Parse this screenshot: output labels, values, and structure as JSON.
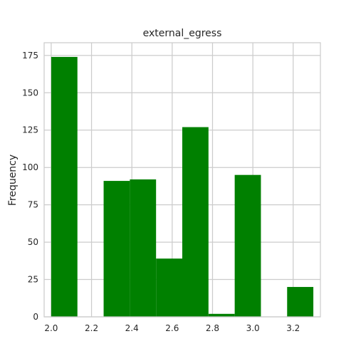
{
  "chart_data": {
    "type": "bar",
    "title": "external_egress",
    "xlabel": "",
    "ylabel": "Frequency",
    "xlim": [
      1.965,
      3.335
    ],
    "ylim": [
      0,
      183.5
    ],
    "xticks": [
      2.0,
      2.2,
      2.4,
      2.6,
      2.8,
      3.0,
      3.2
    ],
    "xtick_labels": [
      "2.0",
      "2.2",
      "2.4",
      "2.6",
      "2.8",
      "3.0",
      "3.2"
    ],
    "yticks": [
      0,
      25,
      50,
      75,
      100,
      125,
      150,
      175
    ],
    "ytick_labels": [
      "0",
      "25",
      "50",
      "75",
      "100",
      "125",
      "150",
      "175"
    ],
    "grid": true,
    "bar_color": "#008000",
    "bins": [
      {
        "x0": 2.0,
        "x1": 2.13,
        "value": 174
      },
      {
        "x0": 2.13,
        "x1": 2.26,
        "value": 0
      },
      {
        "x0": 2.26,
        "x1": 2.39,
        "value": 91
      },
      {
        "x0": 2.39,
        "x1": 2.52,
        "value": 92
      },
      {
        "x0": 2.52,
        "x1": 2.65,
        "value": 39
      },
      {
        "x0": 2.65,
        "x1": 2.78,
        "value": 127
      },
      {
        "x0": 2.78,
        "x1": 2.91,
        "value": 2
      },
      {
        "x0": 2.91,
        "x1": 3.04,
        "value": 95
      },
      {
        "x0": 3.04,
        "x1": 3.17,
        "value": 0
      },
      {
        "x0": 3.17,
        "x1": 3.3,
        "value": 20
      }
    ]
  }
}
